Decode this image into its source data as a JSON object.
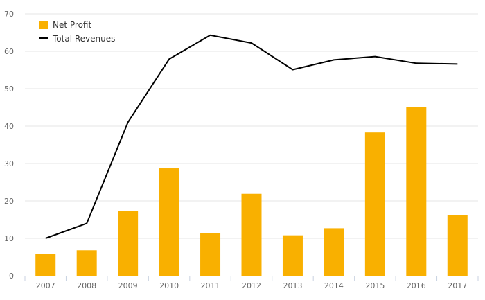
{
  "chart_data": {
    "type": "bar",
    "categories": [
      "2007",
      "2008",
      "2009",
      "2010",
      "2011",
      "2012",
      "2013",
      "2014",
      "2015",
      "2016",
      "2017"
    ],
    "series": [
      {
        "name": "Net Profit",
        "type": "bar",
        "color": "#F9B000",
        "values": [
          5.8,
          6.8,
          17.4,
          28.7,
          11.4,
          21.9,
          10.8,
          12.7,
          38.3,
          45.0,
          16.2
        ]
      },
      {
        "name": "Total Revenues",
        "type": "line",
        "color": "#000000",
        "values": [
          10.0,
          14.0,
          41.0,
          57.9,
          64.3,
          62.2,
          55.1,
          57.7,
          58.6,
          56.8,
          56.6
        ]
      }
    ],
    "title": "",
    "xlabel": "",
    "ylabel": "",
    "ylim": [
      0,
      70
    ],
    "yticks": [
      0,
      10,
      20,
      30,
      40,
      50,
      60,
      70
    ],
    "grid": true,
    "legend": "top-left"
  }
}
